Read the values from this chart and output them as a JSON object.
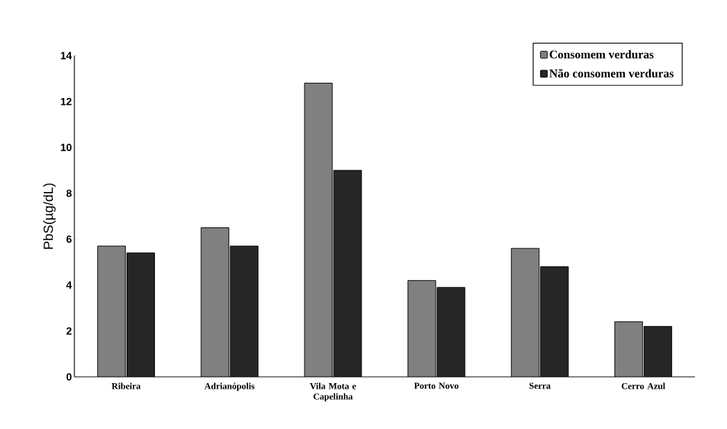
{
  "chart_data": {
    "type": "bar",
    "ylabel": "PbS(µg/dL)",
    "categories": [
      "Ribeira",
      "Adrianópolis",
      "Vila Mota e Capelinha",
      "Porto Novo",
      "Serra",
      "Cerro Azul"
    ],
    "series": [
      {
        "name": "Consomem verduras",
        "color": "#808080",
        "values": [
          5.7,
          6.5,
          12.8,
          4.2,
          5.6,
          2.4
        ]
      },
      {
        "name": "Não consomem verduras",
        "color": "#262626",
        "values": [
          5.4,
          5.7,
          9.0,
          3.9,
          4.8,
          2.2
        ]
      }
    ],
    "ylim": [
      0,
      14
    ],
    "yticks": [
      0,
      2,
      4,
      6,
      8,
      10,
      12,
      14
    ],
    "grid": false,
    "legend": "top right"
  }
}
